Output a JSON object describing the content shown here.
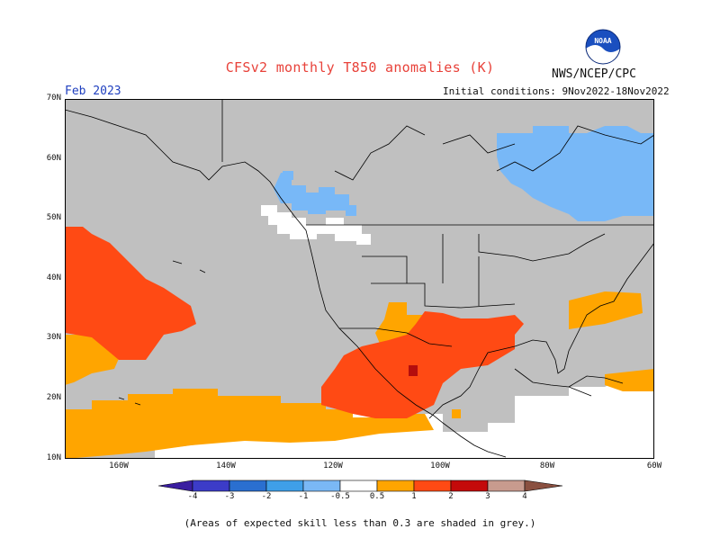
{
  "title": "CFSv2 monthly T850 anomalies (K)",
  "agency": "NWS/NCEP/CPC",
  "logo_text": "NOAA",
  "forecast_month": "Feb 2023",
  "initial_conditions": "Initial conditions: 9Nov2022-18Nov2022",
  "footnote": "(Areas of expected skill less than 0.3 are shaded in grey.)",
  "map": {
    "lat_labels": [
      "70N",
      "60N",
      "50N",
      "40N",
      "30N",
      "20N",
      "10N"
    ],
    "lon_labels": [
      "160W",
      "140W",
      "120W",
      "100W",
      "80W",
      "60W"
    ],
    "skill_mask_color": "#c0c0c0",
    "land_outline_color": "#000000"
  },
  "colorbar": {
    "ticks": [
      "-4",
      "-3",
      "-2",
      "-1",
      "-0.5",
      "0.5",
      "1",
      "2",
      "3",
      "4"
    ],
    "colors": [
      "#3a1ea0",
      "#3c3cc8",
      "#2a6fd0",
      "#3f9fe8",
      "#7ab8f5",
      "#ffffff",
      "#ffa500",
      "#ff4a14",
      "#c40a0a",
      "#8b0000",
      "#c89b8e",
      "#8a5040"
    ]
  }
}
